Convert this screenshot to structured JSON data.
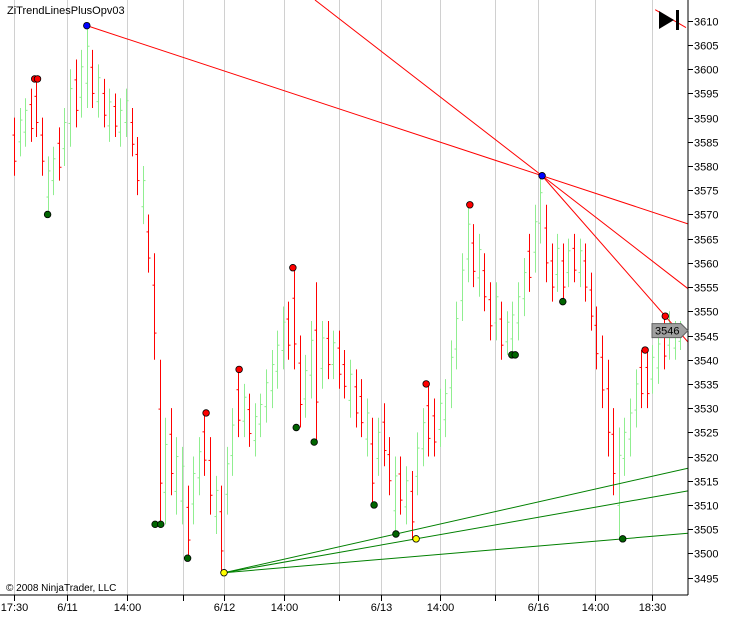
{
  "chart_data": {
    "type": "ohlc",
    "title": "ZiTrendLinesPlusOpv03",
    "copyright": "© 2008 NinjaTrader, LLC",
    "ylim": [
      3491.4,
      3614.3
    ],
    "yticks": [
      3495,
      3500,
      3505,
      3510,
      3515,
      3520,
      3525,
      3530,
      3535,
      3540,
      3545,
      3550,
      3555,
      3560,
      3565,
      3570,
      3575,
      3580,
      3585,
      3590,
      3595,
      3600,
      3605,
      3610
    ],
    "xticks": [
      {
        "bar": 0,
        "label": "17:30"
      },
      {
        "bar": 9.5,
        "label": "6/11"
      },
      {
        "bar": 20.2,
        "label": "14:00"
      },
      {
        "bar": 30.2,
        "label": ""
      },
      {
        "bar": 37.5,
        "label": "6/12"
      },
      {
        "bar": 48.2,
        "label": "14:00"
      },
      {
        "bar": 58,
        "label": ""
      },
      {
        "bar": 65.5,
        "label": "6/13"
      },
      {
        "bar": 76.1,
        "label": "14:00"
      },
      {
        "bar": 85.9,
        "label": ""
      },
      {
        "bar": 93.6,
        "label": "6/16"
      },
      {
        "bar": 103.7,
        "label": "14:00"
      },
      {
        "bar": 113.9,
        "label": "18:30"
      }
    ],
    "grid": {
      "vertical": true,
      "horizontal": false
    },
    "colors": {
      "up": "#90ee90",
      "down": "#ff0000",
      "resistance": "#ff0000",
      "support": "#008000",
      "grid": "#d0d0d0"
    },
    "last_price": "3546",
    "bars": [
      [
        3590,
        3578,
        0
      ],
      [
        3592,
        3582,
        1
      ],
      [
        3594,
        3584,
        1
      ],
      [
        3596,
        3585,
        0
      ],
      [
        3598,
        3586,
        0
      ],
      [
        3590,
        3578,
        0
      ],
      [
        3582,
        3570,
        1
      ],
      [
        3584,
        3574,
        1
      ],
      [
        3588,
        3577,
        0
      ],
      [
        3592,
        3580,
        1
      ],
      [
        3600,
        3584,
        1
      ],
      [
        3602,
        3588,
        0
      ],
      [
        3604,
        3590,
        1
      ],
      [
        3609,
        3592,
        1
      ],
      [
        3604,
        3592,
        0
      ],
      [
        3601,
        3590,
        1
      ],
      [
        3598,
        3588,
        0
      ],
      [
        3596,
        3585,
        1
      ],
      [
        3595,
        3586,
        0
      ],
      [
        3594,
        3584,
        1
      ],
      [
        3596,
        3586,
        1
      ],
      [
        3592,
        3582,
        0
      ],
      [
        3586,
        3574,
        0
      ],
      [
        3580,
        3568,
        1
      ],
      [
        3570,
        3558,
        0
      ],
      [
        3562,
        3540,
        0
      ],
      [
        3540,
        3506,
        0
      ],
      [
        3528,
        3506,
        1
      ],
      [
        3530,
        3512,
        0
      ],
      [
        3524,
        3508,
        1
      ],
      [
        3522,
        3506,
        1
      ],
      [
        3514,
        3499,
        0
      ],
      [
        3520,
        3506,
        1
      ],
      [
        3524,
        3512,
        1
      ],
      [
        3529,
        3516,
        0
      ],
      [
        3524,
        3508,
        0
      ],
      [
        3516,
        3504,
        1
      ],
      [
        3514,
        3496,
        0
      ],
      [
        3522,
        3508,
        1
      ],
      [
        3530,
        3516,
        1
      ],
      [
        3538,
        3524,
        0
      ],
      [
        3535,
        3524,
        1
      ],
      [
        3533,
        3522,
        0
      ],
      [
        3531,
        3520,
        1
      ],
      [
        3533,
        3524,
        1
      ],
      [
        3538,
        3527,
        1
      ],
      [
        3542,
        3530,
        1
      ],
      [
        3546,
        3534,
        1
      ],
      [
        3551,
        3538,
        1
      ],
      [
        3552,
        3540,
        0
      ],
      [
        3559,
        3538,
        0
      ],
      [
        3545,
        3526,
        0
      ],
      [
        3541,
        3528,
        1
      ],
      [
        3548,
        3532,
        1
      ],
      [
        3556,
        3523,
        0
      ],
      [
        3548,
        3534,
        1
      ],
      [
        3548,
        3536,
        0
      ],
      [
        3546,
        3536,
        1
      ],
      [
        3546,
        3534,
        0
      ],
      [
        3542,
        3532,
        0
      ],
      [
        3540,
        3528,
        1
      ],
      [
        3538,
        3526,
        0
      ],
      [
        3536,
        3524,
        0
      ],
      [
        3532,
        3520,
        1
      ],
      [
        3528,
        3510,
        0
      ],
      [
        3528,
        3516,
        1
      ],
      [
        3531,
        3518,
        0
      ],
      [
        3524,
        3512,
        0
      ],
      [
        3520,
        3504,
        1
      ],
      [
        3520,
        3508,
        0
      ],
      [
        3518,
        3506,
        1
      ],
      [
        3517,
        3503,
        0
      ],
      [
        3525,
        3512,
        1
      ],
      [
        3530,
        3518,
        1
      ],
      [
        3535,
        3520,
        0
      ],
      [
        3532,
        3520,
        0
      ],
      [
        3534,
        3522,
        1
      ],
      [
        3536,
        3524,
        1
      ],
      [
        3544,
        3530,
        1
      ],
      [
        3552,
        3538,
        1
      ],
      [
        3562,
        3548,
        1
      ],
      [
        3572,
        3556,
        1
      ],
      [
        3568,
        3555,
        0
      ],
      [
        3566,
        3553,
        1
      ],
      [
        3562,
        3550,
        0
      ],
      [
        3556,
        3544,
        0
      ],
      [
        3556,
        3544,
        1
      ],
      [
        3552,
        3540,
        0
      ],
      [
        3550,
        3541,
        1
      ],
      [
        3552,
        3541,
        1
      ],
      [
        3556,
        3544,
        1
      ],
      [
        3561,
        3549,
        1
      ],
      [
        3566,
        3554,
        0
      ],
      [
        3572,
        3558,
        1
      ],
      [
        3578,
        3564,
        1
      ],
      [
        3572,
        3556,
        0
      ],
      [
        3564,
        3552,
        0
      ],
      [
        3566,
        3554,
        1
      ],
      [
        3564,
        3552,
        0
      ],
      [
        3565,
        3555,
        1
      ],
      [
        3566,
        3556,
        0
      ],
      [
        3565,
        3555,
        1
      ],
      [
        3564,
        3552,
        0
      ],
      [
        3558,
        3546,
        0
      ],
      [
        3551,
        3538,
        0
      ],
      [
        3545,
        3530,
        0
      ],
      [
        3540,
        3520,
        0
      ],
      [
        3530,
        3512,
        0
      ],
      [
        3526,
        3503,
        1
      ],
      [
        3528,
        3516,
        1
      ],
      [
        3532,
        3520,
        1
      ],
      [
        3538,
        3526,
        1
      ],
      [
        3542,
        3530,
        0
      ],
      [
        3542,
        3530,
        0
      ],
      [
        3543,
        3533,
        1
      ],
      [
        3546,
        3535,
        1
      ],
      [
        3549,
        3538,
        0
      ],
      [
        3550,
        3540,
        1
      ],
      [
        3548,
        3540,
        1
      ],
      [
        3548,
        3542,
        1
      ]
    ],
    "markers": [
      {
        "bar": 3.7,
        "price": 3598,
        "color": "#ff0000"
      },
      {
        "bar": 4.2,
        "price": 3598,
        "color": "#ff0000"
      },
      {
        "bar": 6,
        "price": 3570,
        "color": "#006400"
      },
      {
        "bar": 13,
        "price": 3609,
        "color": "#0000ff"
      },
      {
        "bar": 25.2,
        "price": 3506,
        "color": "#006400"
      },
      {
        "bar": 26.2,
        "price": 3506,
        "color": "#006400"
      },
      {
        "bar": 31,
        "price": 3499,
        "color": "#006400"
      },
      {
        "bar": 34.3,
        "price": 3529,
        "color": "#ff0000"
      },
      {
        "bar": 37.5,
        "price": 3496,
        "color": "#ffff00"
      },
      {
        "bar": 40.2,
        "price": 3538,
        "color": "#ff0000"
      },
      {
        "bar": 49.8,
        "price": 3559,
        "color": "#ff0000"
      },
      {
        "bar": 50.4,
        "price": 3526,
        "color": "#006400"
      },
      {
        "bar": 53.6,
        "price": 3523,
        "color": "#006400"
      },
      {
        "bar": 64.3,
        "price": 3510,
        "color": "#006400"
      },
      {
        "bar": 68.2,
        "price": 3504,
        "color": "#006400"
      },
      {
        "bar": 71.8,
        "price": 3503,
        "color": "#ffff00"
      },
      {
        "bar": 73.6,
        "price": 3535,
        "color": "#ff0000"
      },
      {
        "bar": 81.4,
        "price": 3572,
        "color": "#ff0000"
      },
      {
        "bar": 88.9,
        "price": 3541,
        "color": "#006400"
      },
      {
        "bar": 89.5,
        "price": 3541,
        "color": "#006400"
      },
      {
        "bar": 94.3,
        "price": 3578,
        "color": "#0000ff"
      },
      {
        "bar": 98,
        "price": 3552,
        "color": "#006400"
      },
      {
        "bar": 108.7,
        "price": 3503,
        "color": "#006400"
      },
      {
        "bar": 112.7,
        "price": 3542,
        "color": "#ff0000"
      },
      {
        "bar": 116.3,
        "price": 3549,
        "color": "#ff0000"
      }
    ],
    "trend_lines": [
      {
        "from": [
          13,
          3609
        ],
        "to": [
          94.3,
          3578
        ],
        "color": "#ff0000"
      },
      {
        "from": [
          53.75,
          3614.3
        ],
        "to": [
          94.3,
          3578
        ],
        "color": "#ff0000"
      },
      {
        "from": [
          94.3,
          3578
        ],
        "to": [
          116.3,
          3549
        ],
        "color": "#ff0000"
      },
      {
        "from": [
          114.5,
          3612.3
        ],
        "to": [
          120,
          3608.6
        ],
        "color": "#ff0000",
        "extend": false
      },
      {
        "from": [
          37.5,
          3496
        ],
        "to": [
          68.2,
          3504
        ],
        "color": "#008000"
      },
      {
        "from": [
          37.5,
          3496
        ],
        "to": [
          71.8,
          3503
        ],
        "color": "#008000"
      },
      {
        "from": [
          37.5,
          3496
        ],
        "to": [
          108.7,
          3503
        ],
        "color": "#008000"
      }
    ]
  },
  "toolbar": {
    "scroll_end_icon": "play-to-end-icon"
  }
}
